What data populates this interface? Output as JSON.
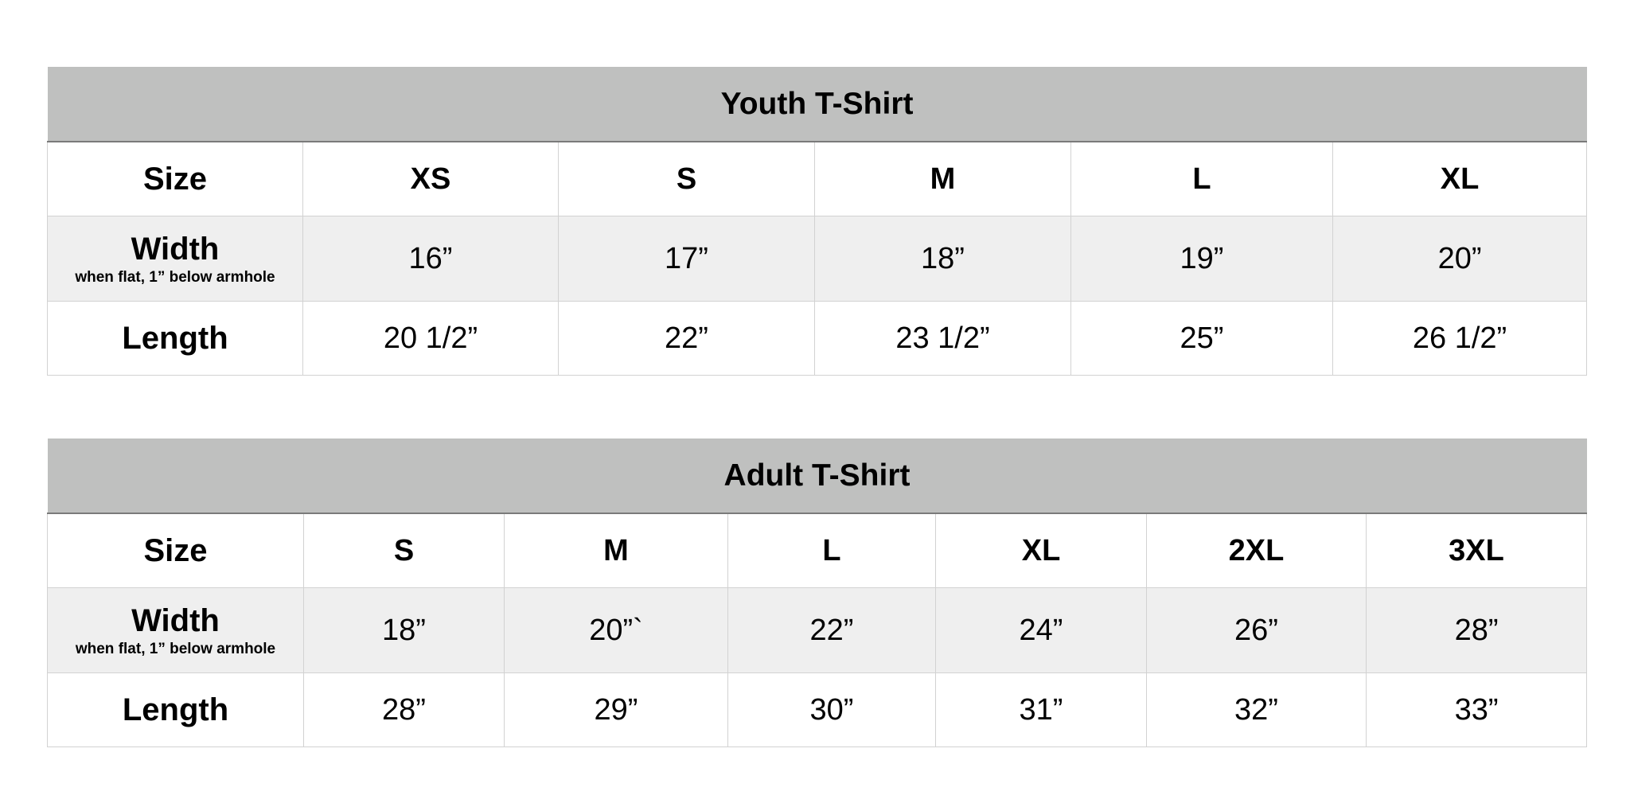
{
  "tables": [
    {
      "title": "Youth T-Shirt",
      "size_label": "Size",
      "width_label": "Width",
      "width_note": "when flat, 1” below armhole",
      "length_label": "Length",
      "sizes": [
        "XS",
        "S",
        "M",
        "L",
        "XL"
      ],
      "widths": [
        "16”",
        "17”",
        "18”",
        "19”",
        "20”"
      ],
      "lengths": [
        "20 1/2”",
        "22”",
        "23 1/2”",
        "25”",
        "26 1/2”"
      ]
    },
    {
      "title": "Adult T-Shirt",
      "size_label": "Size",
      "width_label": "Width",
      "width_note": "when flat, 1” below armhole",
      "length_label": "Length",
      "sizes": [
        "S",
        "M",
        "L",
        "XL",
        "2XL",
        "3XL"
      ],
      "widths": [
        "18”",
        "20”`",
        "22”",
        "24”",
        "26”",
        "28”"
      ],
      "lengths": [
        "28”",
        "29”",
        "30”",
        "31”",
        "32”",
        "33”"
      ]
    }
  ]
}
